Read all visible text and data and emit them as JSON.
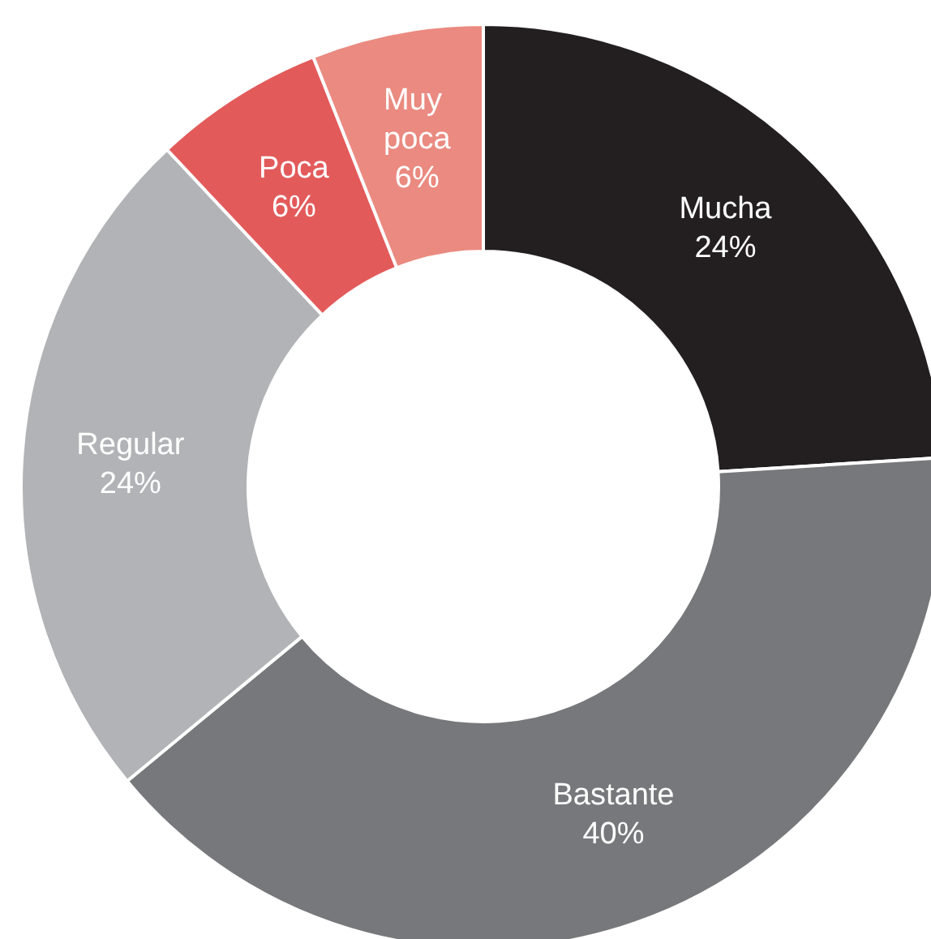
{
  "chart_data": {
    "type": "donut",
    "categories": [
      "Mucha",
      "Bastante",
      "Regular",
      "Poca",
      "Muy poca"
    ],
    "values": [
      24,
      40,
      24,
      6,
      6
    ],
    "value_labels": [
      "24%",
      "40%",
      "24%",
      "6%",
      "6%"
    ],
    "colors": [
      "#231f20",
      "#77787b",
      "#b1b3b6",
      "#e35a5a",
      "#ea8a80"
    ],
    "legend": false
  }
}
